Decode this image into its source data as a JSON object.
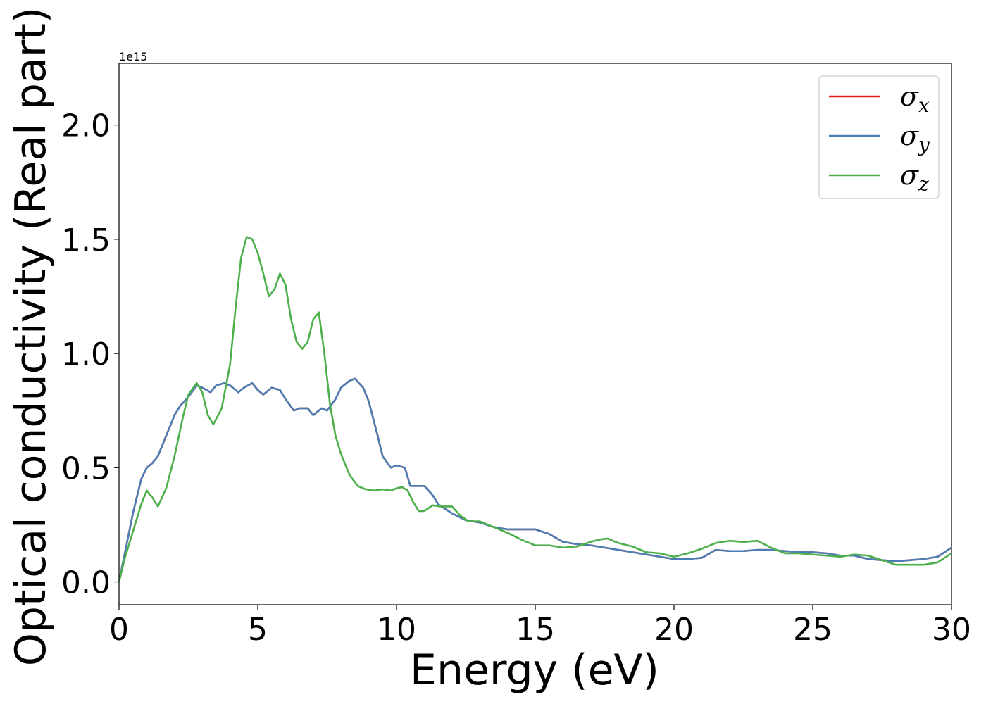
{
  "chart_data": {
    "type": "line",
    "xlabel": "Energy (eV)",
    "ylabel": "Optical conductivity (Real part)",
    "y_offset_label": "1e15",
    "y_scale_factor": 1000000000000000.0,
    "xlim": [
      0,
      30
    ],
    "ylim": [
      -0.1,
      2.27
    ],
    "xticks": [
      0,
      5,
      10,
      15,
      20,
      25,
      30
    ],
    "yticks": [
      0.0,
      0.5,
      1.0,
      1.5,
      2.0
    ],
    "xtick_labels": [
      "0",
      "5",
      "10",
      "15",
      "20",
      "25",
      "30"
    ],
    "ytick_labels": [
      "0.0",
      "0.5",
      "1.0",
      "1.5",
      "2.0"
    ],
    "grid": false,
    "legend_position": "top-right",
    "series": [
      {
        "name": "σ",
        "subscript": "x",
        "color": "#e41a1c",
        "x": [
          0,
          0.2,
          0.5,
          0.8,
          1.0,
          1.2,
          1.4,
          1.7,
          2.0,
          2.2,
          2.5,
          2.8,
          3.0,
          3.3,
          3.5,
          3.8,
          4.0,
          4.3,
          4.5,
          4.8,
          5.0,
          5.2,
          5.5,
          5.8,
          6.0,
          6.3,
          6.5,
          6.8,
          7.0,
          7.3,
          7.5,
          7.8,
          8.0,
          8.3,
          8.5,
          8.8,
          9.0,
          9.3,
          9.5,
          9.8,
          10.0,
          10.3,
          10.5,
          10.8,
          11.0,
          11.3,
          11.5,
          12.0,
          12.5,
          13.0,
          13.5,
          14.0,
          14.5,
          15.0,
          15.5,
          16.0,
          16.5,
          17.0,
          17.5,
          18.0,
          18.5,
          19.0,
          19.5,
          20.0,
          20.5,
          21.0,
          21.5,
          22.0,
          22.5,
          23.0,
          23.5,
          24.0,
          24.5,
          25.0,
          25.5,
          26.0,
          26.5,
          27.0,
          27.5,
          28.0,
          28.5,
          29.0,
          29.5,
          30.0
        ],
        "values": [
          0.0,
          0.12,
          0.3,
          0.45,
          0.5,
          0.52,
          0.55,
          0.64,
          0.73,
          0.77,
          0.81,
          0.86,
          0.85,
          0.83,
          0.86,
          0.87,
          0.86,
          0.83,
          0.85,
          0.87,
          0.84,
          0.82,
          0.85,
          0.84,
          0.8,
          0.75,
          0.76,
          0.76,
          0.73,
          0.76,
          0.75,
          0.8,
          0.85,
          0.88,
          0.89,
          0.85,
          0.79,
          0.65,
          0.55,
          0.5,
          0.51,
          0.5,
          0.42,
          0.42,
          0.42,
          0.38,
          0.34,
          0.3,
          0.27,
          0.26,
          0.24,
          0.23,
          0.23,
          0.23,
          0.21,
          0.175,
          0.165,
          0.16,
          0.15,
          0.14,
          0.13,
          0.12,
          0.11,
          0.1,
          0.1,
          0.105,
          0.14,
          0.135,
          0.135,
          0.14,
          0.14,
          0.135,
          0.13,
          0.13,
          0.125,
          0.115,
          0.115,
          0.1,
          0.095,
          0.09,
          0.095,
          0.1,
          0.11,
          0.15
        ]
      },
      {
        "name": "σ",
        "subscript": "y",
        "color": "#4a7eb4",
        "x": [
          0,
          0.2,
          0.5,
          0.8,
          1.0,
          1.2,
          1.4,
          1.7,
          2.0,
          2.2,
          2.5,
          2.8,
          3.0,
          3.3,
          3.5,
          3.8,
          4.0,
          4.3,
          4.5,
          4.8,
          5.0,
          5.2,
          5.5,
          5.8,
          6.0,
          6.3,
          6.5,
          6.8,
          7.0,
          7.3,
          7.5,
          7.8,
          8.0,
          8.3,
          8.5,
          8.8,
          9.0,
          9.3,
          9.5,
          9.8,
          10.0,
          10.3,
          10.5,
          10.8,
          11.0,
          11.3,
          11.5,
          12.0,
          12.5,
          13.0,
          13.5,
          14.0,
          14.5,
          15.0,
          15.5,
          16.0,
          16.5,
          17.0,
          17.5,
          18.0,
          18.5,
          19.0,
          19.5,
          20.0,
          20.5,
          21.0,
          21.5,
          22.0,
          22.5,
          23.0,
          23.5,
          24.0,
          24.5,
          25.0,
          25.5,
          26.0,
          26.5,
          27.0,
          27.5,
          28.0,
          28.5,
          29.0,
          29.5,
          30.0
        ],
        "values": [
          0.0,
          0.12,
          0.3,
          0.45,
          0.5,
          0.52,
          0.55,
          0.64,
          0.73,
          0.77,
          0.81,
          0.86,
          0.85,
          0.83,
          0.86,
          0.87,
          0.86,
          0.83,
          0.85,
          0.87,
          0.84,
          0.82,
          0.85,
          0.84,
          0.8,
          0.75,
          0.76,
          0.76,
          0.73,
          0.76,
          0.75,
          0.8,
          0.85,
          0.88,
          0.89,
          0.85,
          0.79,
          0.65,
          0.55,
          0.5,
          0.51,
          0.5,
          0.42,
          0.42,
          0.42,
          0.38,
          0.34,
          0.3,
          0.27,
          0.26,
          0.24,
          0.23,
          0.23,
          0.23,
          0.21,
          0.175,
          0.165,
          0.16,
          0.15,
          0.14,
          0.13,
          0.12,
          0.11,
          0.1,
          0.1,
          0.105,
          0.14,
          0.135,
          0.135,
          0.14,
          0.14,
          0.135,
          0.13,
          0.13,
          0.125,
          0.115,
          0.115,
          0.1,
          0.095,
          0.09,
          0.095,
          0.1,
          0.11,
          0.15
        ]
      },
      {
        "name": "σ",
        "subscript": "z",
        "color": "#4daf4a",
        "x": [
          0,
          0.2,
          0.5,
          0.8,
          1.0,
          1.2,
          1.4,
          1.7,
          2.0,
          2.3,
          2.5,
          2.8,
          3.0,
          3.2,
          3.4,
          3.7,
          4.0,
          4.2,
          4.4,
          4.6,
          4.8,
          5.0,
          5.2,
          5.4,
          5.6,
          5.8,
          6.0,
          6.2,
          6.4,
          6.6,
          6.8,
          7.0,
          7.2,
          7.4,
          7.6,
          7.8,
          8.0,
          8.3,
          8.6,
          8.9,
          9.2,
          9.5,
          9.8,
          10.0,
          10.2,
          10.4,
          10.6,
          10.8,
          11.0,
          11.3,
          11.6,
          12.0,
          12.3,
          12.6,
          13.0,
          13.5,
          14.0,
          14.5,
          15.0,
          15.5,
          16.0,
          16.5,
          17.0,
          17.3,
          17.6,
          18.0,
          18.5,
          19.0,
          19.5,
          20.0,
          20.5,
          21.0,
          21.5,
          22.0,
          22.5,
          23.0,
          23.5,
          24.0,
          24.5,
          25.0,
          25.5,
          26.0,
          26.5,
          27.0,
          27.5,
          28.0,
          28.5,
          29.0,
          29.5,
          30.0
        ],
        "values": [
          0.0,
          0.1,
          0.22,
          0.34,
          0.4,
          0.37,
          0.33,
          0.41,
          0.55,
          0.72,
          0.82,
          0.87,
          0.83,
          0.73,
          0.69,
          0.76,
          0.95,
          1.2,
          1.42,
          1.51,
          1.5,
          1.44,
          1.35,
          1.25,
          1.28,
          1.35,
          1.3,
          1.15,
          1.05,
          1.02,
          1.05,
          1.15,
          1.18,
          1.0,
          0.78,
          0.64,
          0.56,
          0.47,
          0.42,
          0.405,
          0.4,
          0.405,
          0.4,
          0.41,
          0.415,
          0.4,
          0.35,
          0.31,
          0.31,
          0.335,
          0.33,
          0.33,
          0.29,
          0.265,
          0.265,
          0.24,
          0.215,
          0.185,
          0.16,
          0.16,
          0.15,
          0.155,
          0.175,
          0.185,
          0.19,
          0.17,
          0.155,
          0.13,
          0.125,
          0.11,
          0.125,
          0.145,
          0.17,
          0.18,
          0.175,
          0.18,
          0.15,
          0.125,
          0.125,
          0.12,
          0.115,
          0.11,
          0.12,
          0.115,
          0.095,
          0.075,
          0.075,
          0.075,
          0.085,
          0.125
        ]
      }
    ]
  }
}
